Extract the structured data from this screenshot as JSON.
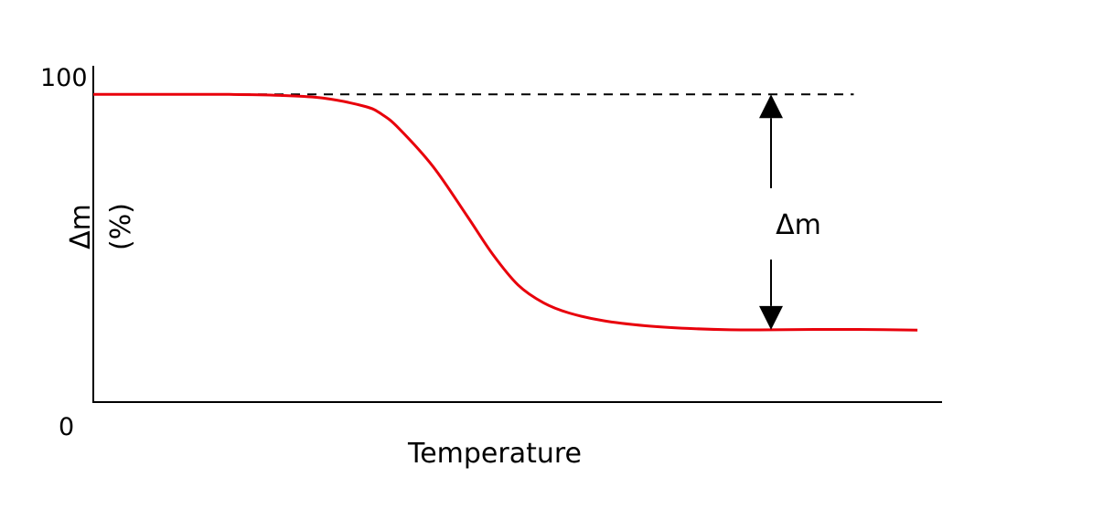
{
  "chart_data": {
    "type": "line",
    "xlabel": "Temperature",
    "ylabel_line1": "Δm",
    "ylabel_line2": "(%)",
    "y_ticks": [
      "0",
      "100"
    ],
    "ylim": [
      0,
      100
    ],
    "reference_line": {
      "style": "dashed",
      "y": 91.5
    },
    "annotation": {
      "label": "Δm",
      "from": 91.5,
      "to": 21.5
    },
    "series": [
      {
        "color": "#e8000b",
        "style": "solid",
        "x": [
          0,
          16,
          22,
          27,
          32,
          34,
          36,
          40,
          44,
          47,
          50,
          53,
          56,
          60,
          65,
          70,
          75,
          80,
          85,
          90,
          97
        ],
        "y": [
          91.5,
          91.5,
          91.2,
          90.4,
          87.9,
          85.5,
          81.3,
          70.0,
          55.3,
          44.0,
          34.8,
          29.5,
          26.5,
          24.2,
          22.7,
          21.9,
          21.5,
          21.5,
          21.6,
          21.6,
          21.4
        ]
      }
    ]
  }
}
